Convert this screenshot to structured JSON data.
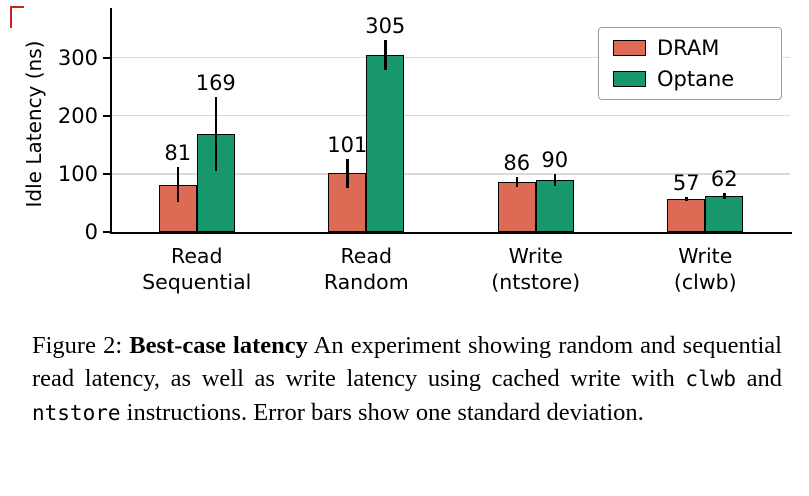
{
  "chart_data": {
    "type": "bar",
    "title": "",
    "xlabel": "",
    "ylabel": "Idle Latency (ns)",
    "categories": [
      "Read\nSequential",
      "Read\nRandom",
      "Write\n(ntstore)",
      "Write\n(clwb)"
    ],
    "series": [
      {
        "name": "DRAM",
        "color": "#dc6a55",
        "values": [
          81,
          101,
          86,
          57
        ],
        "errors": [
          30,
          25,
          8,
          4
        ]
      },
      {
        "name": "Optane",
        "color": "#17976a",
        "values": [
          169,
          305,
          90,
          62
        ],
        "errors": [
          64,
          26,
          10,
          5
        ]
      }
    ],
    "yticks": [
      0,
      100,
      200,
      300
    ],
    "ylim": [
      0,
      375
    ],
    "grid": true,
    "legend_position": "upper right",
    "error_bars": "one standard deviation"
  },
  "caption": {
    "prefix": "Figure 2: ",
    "bold": "Best-case latency",
    "body1": " An experiment showing random and sequential read latency, as well as write latency using cached write with ",
    "code1": "clwb",
    "mid": " and ",
    "code2": "ntstore",
    "body2": " instructions. Error bars show one standard deviation."
  }
}
